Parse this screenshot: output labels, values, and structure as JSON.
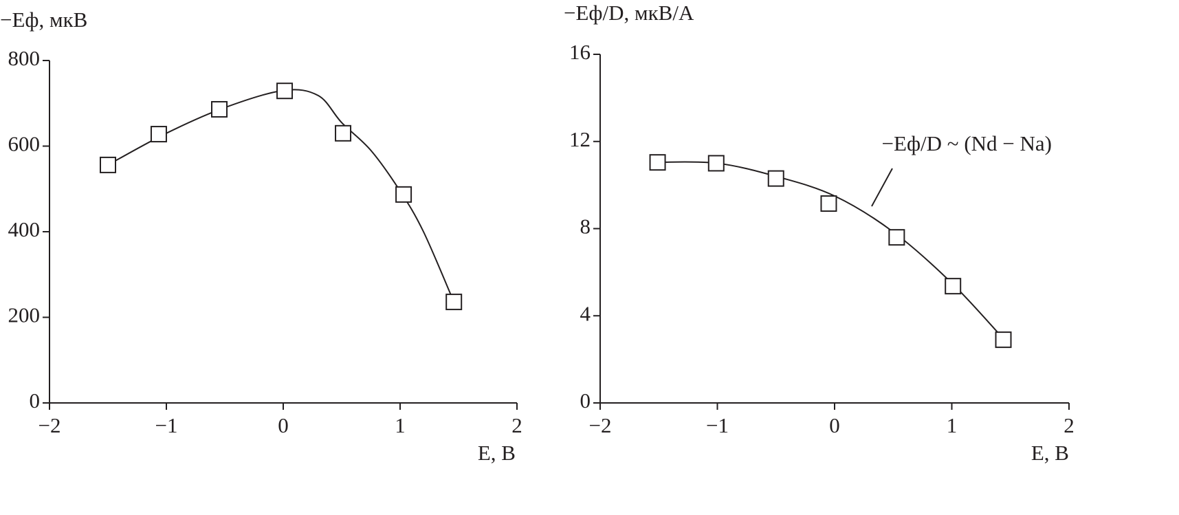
{
  "chart_data": [
    {
      "type": "scatter",
      "y_label": "−Eф, мкВ",
      "x_label": "E, В",
      "xlim": [
        -2,
        2
      ],
      "xticks": [
        {
          "value": -2,
          "label": "−2"
        },
        {
          "value": -1,
          "label": "−1"
        },
        0,
        1,
        2
      ],
      "ylim": [
        0,
        800
      ],
      "yticks": [
        0,
        200,
        400,
        600,
        800
      ],
      "color": "#231f20",
      "series": [
        {
          "marker": "square",
          "x": [
            -1.5,
            -1.065,
            -0.547,
            0.012,
            0.512,
            1.03,
            1.46
          ],
          "values": [
            556,
            628,
            686,
            729,
            630,
            487,
            236
          ]
        },
        {
          "marker": "none",
          "x": [
            -1.5,
            -1.0,
            -0.5,
            0.0,
            0.3,
            0.5,
            0.75,
            1.0,
            1.2,
            1.46
          ],
          "values": [
            556,
            630,
            690,
            730,
            718,
            655,
            590,
            495,
            400,
            236
          ]
        }
      ]
    },
    {
      "type": "scatter",
      "y_label": "−Eф/D, мкВ/А",
      "x_label": "E, В",
      "annotation": "−Eф/D ~ (Nd − Na)",
      "xlim": [
        -2,
        2
      ],
      "xticks": [
        {
          "value": -2,
          "label": "−2"
        },
        {
          "value": -1,
          "label": "−1"
        },
        0,
        1,
        2
      ],
      "ylim": [
        0,
        16
      ],
      "yticks": [
        0,
        4,
        8,
        12,
        16
      ],
      "color": "#231f20",
      "series": [
        {
          "marker": "square",
          "x": [
            -1.51,
            -1.01,
            -0.5,
            -0.05,
            0.53,
            1.01,
            1.44
          ],
          "values": [
            11.04,
            11.0,
            10.3,
            9.15,
            7.6,
            5.36,
            2.9
          ]
        },
        {
          "marker": "none",
          "x": [
            -1.5,
            -1.0,
            -0.5,
            0.0,
            0.5,
            1.0,
            1.44
          ],
          "values": [
            11.05,
            11.0,
            10.4,
            9.5,
            7.85,
            5.5,
            2.95
          ]
        }
      ]
    }
  ]
}
